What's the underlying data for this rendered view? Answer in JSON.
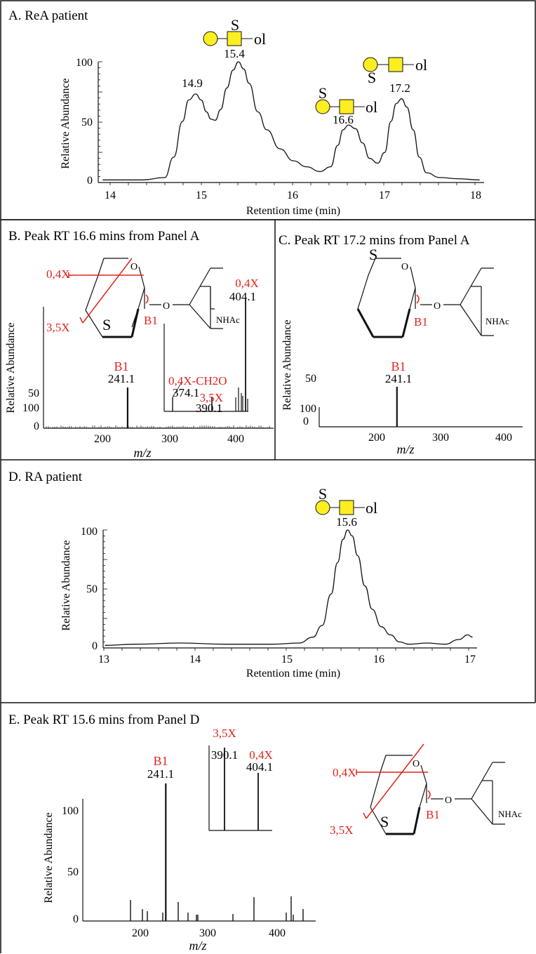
{
  "chart_data": [
    {
      "panel": "A",
      "type": "line",
      "title": "A. ReA patient",
      "xlabel": "Retention time (min)",
      "ylabel": "Relative Abundance",
      "xlim": [
        13.8,
        18.15
      ],
      "ylim": [
        0,
        100
      ],
      "xticks": [
        "14",
        "15",
        "16",
        "17",
        "18"
      ],
      "yticks": [
        "0",
        "50",
        "100"
      ],
      "trace": {
        "x": [
          13.85,
          14.3,
          14.55,
          14.65,
          14.75,
          14.82,
          14.9,
          14.96,
          15.02,
          15.07,
          15.12,
          15.18,
          15.25,
          15.32,
          15.38,
          15.44,
          15.5,
          15.6,
          15.7,
          15.85,
          16.0,
          16.15,
          16.3,
          16.42,
          16.5,
          16.56,
          16.62,
          16.7,
          16.78,
          16.86,
          16.95,
          17.03,
          17.1,
          17.16,
          17.22,
          17.28,
          17.35,
          17.42,
          17.5,
          17.65,
          17.85,
          18.1
        ],
        "y": [
          1,
          1,
          3,
          20,
          50,
          68,
          73,
          68,
          58,
          52,
          51,
          60,
          78,
          93,
          100,
          94,
          82,
          58,
          43,
          27,
          17,
          12,
          8,
          12,
          30,
          43,
          47,
          44,
          32,
          19,
          15,
          24,
          50,
          65,
          69,
          62,
          43,
          20,
          7,
          3,
          2,
          1
        ]
      },
      "peak_labels": [
        "14.9",
        "15.4",
        "16.6",
        "17.2"
      ],
      "glycan_label": "ol",
      "sulfate_label": "S"
    },
    {
      "panel": "B",
      "type": "bar",
      "title": "B. Peak RT 16.6 mins from Panel A",
      "xlabel": "m/z",
      "ylabel": "Relative Abundance",
      "xlim": [
        115,
        460
      ],
      "ylim": [
        0,
        100
      ],
      "xticks": [
        "200",
        "300",
        "400"
      ],
      "yticks": [
        "0",
        "50",
        "100"
      ],
      "peaks": [
        {
          "mz": 241.1,
          "intensity": 100,
          "label": "241.1",
          "ion": "B1"
        }
      ],
      "inset": {
        "peaks": [
          {
            "mz": 374.1,
            "intensity": 18,
            "label": "374.1",
            "ion": "0,4X-CH2O"
          },
          {
            "mz": 390.1,
            "intensity": 20,
            "label": "390.1",
            "ion": "3,5X"
          },
          {
            "mz": 404.1,
            "intensity": 100,
            "label": "404.1",
            "ion": "0,4X"
          }
        ]
      },
      "structure_labels": {
        "sulfate": "S",
        "nhac": "NHAc",
        "ring_o": "O",
        "link_o": "O",
        "b1": "B1",
        "x04": "0,4X",
        "x35": "3,5X"
      }
    },
    {
      "panel": "C",
      "type": "bar",
      "title": "C. Peak RT 17.2 mins from Panel A",
      "xlabel": "m/z",
      "ylabel": "Relative Abundance",
      "xlim": [
        115,
        445
      ],
      "ylim": [
        0,
        100
      ],
      "xticks": [
        "200",
        "300",
        "400"
      ],
      "yticks": [
        "0",
        "50",
        "100"
      ],
      "peaks": [
        {
          "mz": 241.1,
          "intensity": 100,
          "label": "241.1",
          "ion": "B1"
        }
      ],
      "structure_labels": {
        "sulfate": "S",
        "nhac": "NHAc",
        "ring_o": "O",
        "link_o": "O",
        "b1": "B1"
      }
    },
    {
      "panel": "D",
      "type": "line",
      "title": "D. RA patient",
      "xlabel": "Retention time (min)",
      "ylabel": "Relative Abundance",
      "xlim": [
        12.95,
        17.05
      ],
      "ylim": [
        0,
        100
      ],
      "xticks": [
        "13",
        "14",
        "15",
        "16",
        "17"
      ],
      "yticks": [
        "0",
        "50",
        "100"
      ],
      "trace": {
        "x": [
          12.97,
          13.3,
          13.8,
          14.3,
          14.8,
          15.1,
          15.25,
          15.35,
          15.45,
          15.52,
          15.58,
          15.63,
          15.68,
          15.74,
          15.82,
          15.9,
          16.0,
          16.1,
          16.2,
          16.3,
          16.5,
          16.7,
          16.85,
          16.95,
          17.0
        ],
        "y": [
          1,
          2,
          3,
          2,
          2,
          3,
          8,
          18,
          45,
          72,
          92,
          100,
          95,
          78,
          52,
          32,
          17,
          10,
          4,
          2,
          3,
          2,
          6,
          10,
          8
        ]
      },
      "peak_labels": [
        "15.6"
      ],
      "glycan_label": "ol",
      "sulfate_label": "S"
    },
    {
      "panel": "E",
      "type": "bar",
      "title": "E. Peak RT 15.6 mins from Panel D",
      "xlabel": "m/z",
      "ylabel": "Relative Abundance",
      "xlim": [
        120,
        460
      ],
      "ylim": [
        0,
        100
      ],
      "xticks": [
        "200",
        "300",
        "400"
      ],
      "yticks": [
        "0",
        "50",
        "100"
      ],
      "peaks": [
        {
          "mz": 241.1,
          "intensity": 100,
          "label": "241.1",
          "ion": "B1"
        }
      ],
      "inset": {
        "peaks": [
          {
            "mz": 390.1,
            "intensity": 100,
            "label": "390.1",
            "ion": "3,5X"
          },
          {
            "mz": 404.1,
            "intensity": 70,
            "label": "404.1",
            "ion": "0,4X"
          }
        ]
      },
      "structure_labels": {
        "sulfate": "S",
        "nhac": "NHAc",
        "ring_o": "O",
        "link_o": "O",
        "b1": "B1",
        "x04": "0,4X",
        "x35": "3,5X"
      }
    }
  ]
}
